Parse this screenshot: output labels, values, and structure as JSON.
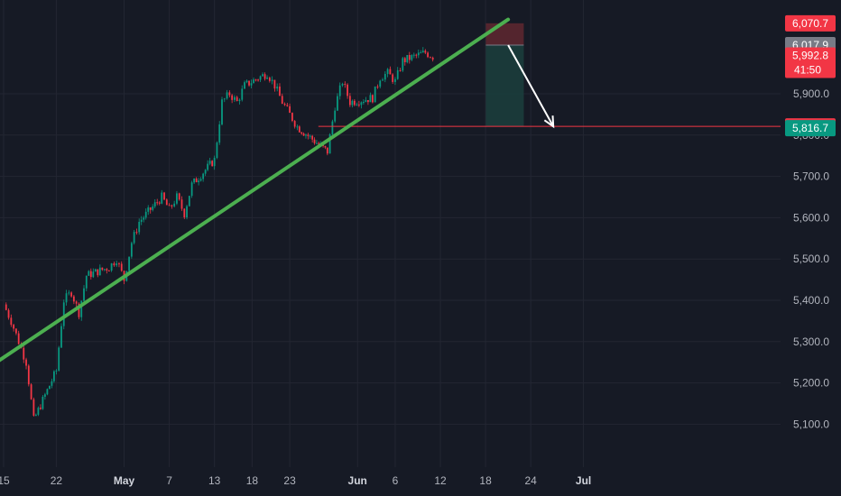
{
  "chart_data": {
    "type": "candlestick",
    "y_axis": {
      "position": "right",
      "ticks": [
        5100,
        5200,
        5300,
        5400,
        5500,
        5600,
        5700,
        5800,
        5900
      ],
      "tick_labels": [
        "5,100.0",
        "5,200.0",
        "5,300.0",
        "5,400.0",
        "5,500.0",
        "5,600.0",
        "5,700.0",
        "5,800.0",
        "5,900.0"
      ]
    },
    "x_axis": {
      "ticks": [
        "15",
        "22",
        "May",
        "7",
        "13",
        "18",
        "23",
        "Jun",
        "6",
        "12",
        "18",
        "24",
        "Jul"
      ],
      "major": [
        "May",
        "Jun",
        "Jul"
      ]
    },
    "grid": true,
    "price_path": [
      [
        "Apr 15",
        5390
      ],
      [
        "Apr 16",
        5350
      ],
      [
        "Apr 17",
        5300
      ],
      [
        "Apr 18",
        5250
      ],
      [
        "Apr 19",
        5110
      ],
      [
        "Apr 22",
        5230
      ],
      [
        "Apr 23",
        5400
      ],
      [
        "Apr 24",
        5420
      ],
      [
        "Apr 25",
        5370
      ],
      [
        "Apr 26",
        5460
      ],
      [
        "Apr 29",
        5480
      ],
      [
        "Apr 30",
        5500
      ],
      [
        "May 1",
        5450
      ],
      [
        "May 2",
        5540
      ],
      [
        "May 3",
        5590
      ],
      [
        "May 6",
        5650
      ],
      [
        "May 7",
        5620
      ],
      [
        "May 8",
        5650
      ],
      [
        "May 9",
        5610
      ],
      [
        "May 10",
        5680
      ],
      [
        "May 13",
        5740
      ],
      [
        "May 14",
        5880
      ],
      [
        "May 15",
        5900
      ],
      [
        "May 16",
        5880
      ],
      [
        "May 17",
        5920
      ],
      [
        "May 20",
        5950
      ],
      [
        "May 21",
        5920
      ],
      [
        "May 22",
        5880
      ],
      [
        "May 23",
        5850
      ],
      [
        "May 24",
        5820
      ],
      [
        "May 28",
        5760
      ],
      [
        "May 29",
        5870
      ],
      [
        "May 30",
        5930
      ],
      [
        "May 31",
        5880
      ],
      [
        "Jun 3",
        5890
      ],
      [
        "Jun 4",
        5940
      ],
      [
        "Jun 5",
        5950
      ],
      [
        "Jun 6",
        5930
      ],
      [
        "Jun 7",
        5980
      ],
      [
        "Jun 10",
        6000
      ],
      [
        "Jun 11",
        5990
      ]
    ],
    "trendline": {
      "color": "#4caf50",
      "from": [
        "Apr 12",
        5225
      ],
      "to": [
        "Jun 21",
        6080
      ]
    },
    "horizontal_line": {
      "price": 5821.0,
      "color": "#f23645"
    },
    "short_position": {
      "stop": 6070.7,
      "entry": 6017.9,
      "target": 5821.0,
      "stop_fill": "#5b2730",
      "target_fill": "#1b3d3c"
    },
    "arrow": {
      "from": [
        "Jun 21",
        6017.9
      ],
      "to": [
        "Jun 27",
        5821
      ]
    },
    "price_badges": [
      {
        "text": "6,070.7",
        "price": 6070.7,
        "bg": "#f23645",
        "fg": "#ffffff"
      },
      {
        "text": "6,017.9",
        "price": 6017.9,
        "bg": "#787b86",
        "fg": "#ffffff"
      },
      {
        "text": "5,992.8",
        "price": 5992.8,
        "bg": "#f23645",
        "fg": "#ffffff",
        "subtext": "41:50"
      },
      {
        "text": "5,821.0",
        "price": 5821.0,
        "bg": "#f23645",
        "fg": "#ffffff"
      },
      {
        "text": "5,816.7",
        "price": 5816.7,
        "bg": "#089981",
        "fg": "#ffffff"
      }
    ],
    "colors": {
      "up": "#089981",
      "down": "#f23645",
      "background": "#161a25",
      "grid": "#232632"
    }
  }
}
